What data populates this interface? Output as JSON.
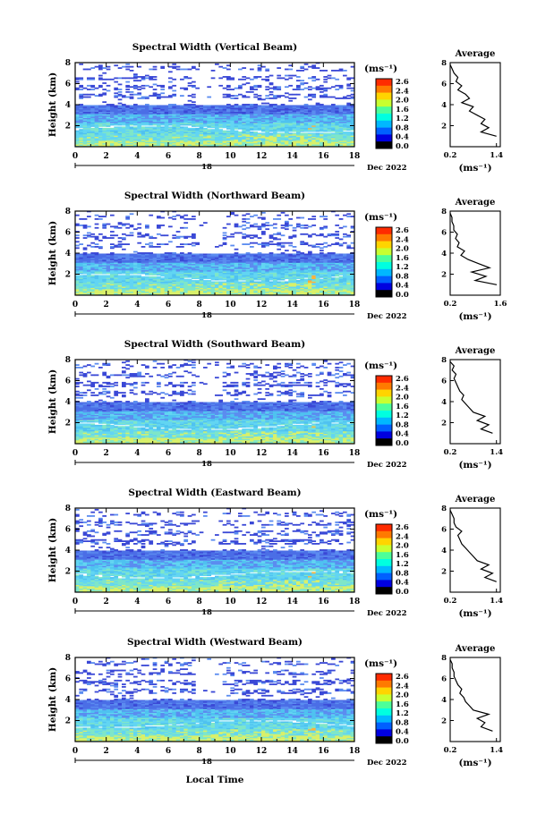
{
  "figure": {
    "common_xlabel": "Local Time",
    "date_label": "Dec 2022",
    "day_label": "18",
    "unit_label": "(ms⁻¹)",
    "avg_title": "Average"
  },
  "colorbar": {
    "ticks": [
      "2.6",
      "2.4",
      "2.0",
      "1.6",
      "1.2",
      "0.8",
      "0.4",
      "0.0"
    ],
    "colors": [
      "#ff2b00",
      "#ff7a00",
      "#ffd400",
      "#c8ff30",
      "#4cff9a",
      "#00ffe0",
      "#00b8ff",
      "#0060ff",
      "#0000e0",
      "#000000"
    ]
  },
  "chart_data": [
    {
      "type": "heatmap",
      "title": "Spectral Width (Vertical Beam)",
      "xlabel": "",
      "ylabel": "Height (km)",
      "xlim": [
        0,
        18
      ],
      "ylim": [
        0,
        8
      ],
      "xticks": [
        "0",
        "2",
        "4",
        "6",
        "8",
        "10",
        "12",
        "14",
        "16",
        "18"
      ],
      "yticks": [
        "2",
        "4",
        "6",
        "8"
      ],
      "colorbar_label": "(ms⁻¹)",
      "average_profile": {
        "title": "Average",
        "xlabel": "(ms⁻¹)",
        "xticks": [
          "0.2",
          "1.4"
        ],
        "xlim": [
          0.2,
          1.5
        ],
        "ylim": [
          0,
          8
        ],
        "yticks": [
          "2",
          "4",
          "6",
          "8"
        ],
        "height_km": [
          1.0,
          1.4,
          1.8,
          2.2,
          2.6,
          3.0,
          3.4,
          3.8,
          4.2,
          4.6,
          5.0,
          5.4,
          5.8,
          6.2,
          6.6,
          7.0,
          7.4,
          7.8
        ],
        "width_ms": [
          1.4,
          1.0,
          1.2,
          1.0,
          1.1,
          0.9,
          0.7,
          0.8,
          0.5,
          0.7,
          0.6,
          0.4,
          0.5,
          0.35,
          0.4,
          0.3,
          0.25,
          0.2
        ]
      }
    },
    {
      "type": "heatmap",
      "title": "Spectral Width (Northward Beam)",
      "xlabel": "",
      "ylabel": "Height (km)",
      "xlim": [
        0,
        18
      ],
      "ylim": [
        0,
        8
      ],
      "xticks": [
        "0",
        "2",
        "4",
        "6",
        "8",
        "10",
        "12",
        "14",
        "16",
        "18"
      ],
      "yticks": [
        "2",
        "4",
        "6",
        "8"
      ],
      "colorbar_label": "(ms⁻¹)",
      "average_profile": {
        "title": "Average",
        "xlabel": "(ms⁻¹)",
        "xticks": [
          "0.2",
          "1.6"
        ],
        "xlim": [
          0.2,
          1.6
        ],
        "ylim": [
          0,
          8
        ],
        "yticks": [
          "2",
          "4",
          "6",
          "8"
        ],
        "height_km": [
          1.0,
          1.4,
          1.8,
          2.2,
          2.6,
          3.0,
          3.4,
          3.8,
          4.2,
          4.6,
          5.0,
          5.4,
          5.8,
          6.2,
          6.6,
          7.0,
          7.4,
          7.8
        ],
        "width_ms": [
          1.5,
          0.9,
          1.2,
          0.8,
          1.3,
          1.0,
          0.7,
          0.5,
          0.6,
          0.4,
          0.45,
          0.35,
          0.4,
          0.3,
          0.3,
          0.25,
          0.25,
          0.2
        ]
      }
    },
    {
      "type": "heatmap",
      "title": "Spectral Width (Southward Beam)",
      "xlabel": "",
      "ylabel": "Height (km)",
      "xlim": [
        0,
        18
      ],
      "ylim": [
        0,
        8
      ],
      "xticks": [
        "0",
        "2",
        "4",
        "6",
        "8",
        "10",
        "12",
        "14",
        "16",
        "18"
      ],
      "yticks": [
        "2",
        "4",
        "6",
        "8"
      ],
      "colorbar_label": "(ms⁻¹)",
      "average_profile": {
        "title": "Average",
        "xlabel": "(ms⁻¹)",
        "xticks": [
          "0.2",
          "1.4"
        ],
        "xlim": [
          0.2,
          1.5
        ],
        "ylim": [
          0,
          8
        ],
        "yticks": [
          "2",
          "4",
          "6",
          "8"
        ],
        "height_km": [
          1.0,
          1.4,
          1.8,
          2.2,
          2.6,
          3.0,
          3.4,
          3.8,
          4.2,
          4.6,
          5.0,
          5.4,
          5.8,
          6.2,
          6.6,
          7.0,
          7.4,
          7.8
        ],
        "width_ms": [
          1.3,
          1.0,
          1.2,
          0.9,
          1.1,
          0.8,
          0.7,
          0.6,
          0.5,
          0.55,
          0.45,
          0.4,
          0.35,
          0.3,
          0.35,
          0.25,
          0.3,
          0.2
        ]
      }
    },
    {
      "type": "heatmap",
      "title": "Spectral Width (Eastward Beam)",
      "xlabel": "",
      "ylabel": "Height (km)",
      "xlim": [
        0,
        18
      ],
      "ylim": [
        0,
        8
      ],
      "xticks": [
        "0",
        "2",
        "4",
        "6",
        "8",
        "10",
        "12",
        "14",
        "16",
        "18"
      ],
      "yticks": [
        "2",
        "4",
        "6",
        "8"
      ],
      "colorbar_label": "(ms⁻¹)",
      "average_profile": {
        "title": "Average",
        "xlabel": "(ms⁻¹)",
        "xticks": [
          "0.2",
          "1.4"
        ],
        "xlim": [
          0.2,
          1.5
        ],
        "ylim": [
          0,
          8
        ],
        "yticks": [
          "2",
          "4",
          "6",
          "8"
        ],
        "height_km": [
          1.0,
          1.4,
          1.8,
          2.2,
          2.6,
          3.0,
          3.4,
          3.8,
          4.2,
          4.6,
          5.0,
          5.4,
          5.8,
          6.2,
          6.6,
          7.0,
          7.4,
          7.8
        ],
        "width_ms": [
          1.4,
          1.1,
          1.3,
          1.0,
          1.2,
          0.9,
          0.8,
          0.7,
          0.6,
          0.5,
          0.45,
          0.4,
          0.5,
          0.35,
          0.3,
          0.3,
          0.25,
          0.2
        ]
      }
    },
    {
      "type": "heatmap",
      "title": "Spectral Width (Westward Beam)",
      "xlabel": "Local Time",
      "ylabel": "Height (km)",
      "xlim": [
        0,
        18
      ],
      "ylim": [
        0,
        8
      ],
      "xticks": [
        "0",
        "2",
        "4",
        "6",
        "8",
        "10",
        "12",
        "14",
        "16",
        "18"
      ],
      "yticks": [
        "2",
        "4",
        "6",
        "8"
      ],
      "colorbar_label": "(ms⁻¹)",
      "average_profile": {
        "title": "Average",
        "xlabel": "(ms⁻¹)",
        "xticks": [
          "0.2",
          "1.4"
        ],
        "xlim": [
          0.2,
          1.5
        ],
        "ylim": [
          0,
          8
        ],
        "yticks": [
          "2",
          "4",
          "6",
          "8"
        ],
        "height_km": [
          1.0,
          1.4,
          1.8,
          2.2,
          2.6,
          3.0,
          3.4,
          3.8,
          4.2,
          4.6,
          5.0,
          5.4,
          5.8,
          6.2,
          6.6,
          7.0,
          7.4,
          7.8
        ],
        "width_ms": [
          1.3,
          1.0,
          1.1,
          0.9,
          1.2,
          0.8,
          0.7,
          0.6,
          0.55,
          0.45,
          0.5,
          0.4,
          0.35,
          0.3,
          0.3,
          0.25,
          0.25,
          0.2
        ]
      }
    }
  ]
}
